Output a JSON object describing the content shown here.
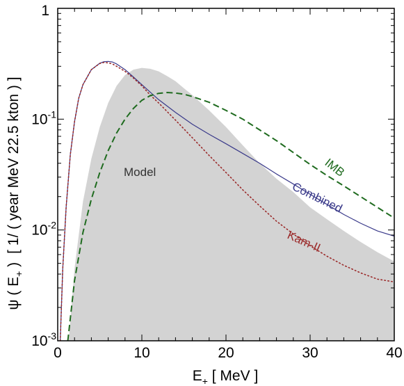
{
  "chart_data": {
    "type": "line",
    "title": "",
    "xlabel": {
      "main": "E",
      "sub": "+",
      "rest": " [ MeV ]"
    },
    "ylabel": {
      "psi": "ψ",
      "paren_open": " ( E",
      "sub": "+",
      "paren_close": " )",
      "units": "[ 1/ ( year MeV 22.5 kton ) ]"
    },
    "xlim": [
      0,
      40
    ],
    "ylim": [
      0.001,
      1
    ],
    "yscale": "log",
    "grid": false,
    "legend": "none",
    "x_ticks": [
      0,
      10,
      20,
      30,
      40
    ],
    "y_ticks": [
      {
        "value": 1,
        "base": "1",
        "exp": ""
      },
      {
        "value": 0.1,
        "base": "10",
        "exp": "-1"
      },
      {
        "value": 0.01,
        "base": "10",
        "exp": "-2"
      },
      {
        "value": 0.001,
        "base": "10",
        "exp": "-3"
      }
    ],
    "series": [
      {
        "name": "Model",
        "kind": "filled",
        "color": "#d3d3d3",
        "x": [
          1.3,
          2,
          3,
          4,
          5,
          6,
          7,
          8,
          9,
          10,
          11,
          12,
          13,
          14,
          15,
          16,
          18,
          20,
          22,
          24,
          26,
          28,
          30,
          32,
          34,
          36,
          38,
          40
        ],
        "y": [
          0.001,
          0.0045,
          0.018,
          0.044,
          0.085,
          0.14,
          0.2,
          0.25,
          0.28,
          0.29,
          0.285,
          0.27,
          0.245,
          0.22,
          0.19,
          0.165,
          0.12,
          0.085,
          0.058,
          0.04,
          0.029,
          0.022,
          0.016,
          0.0125,
          0.0098,
          0.0078,
          0.0063,
          0.0052
        ]
      },
      {
        "name": "Combined",
        "kind": "solid",
        "color": "#3a3a8a",
        "x": [
          0.3,
          0.6,
          1,
          1.5,
          2,
          2.5,
          3,
          4,
          5,
          5.5,
          6,
          6.5,
          7,
          8,
          9,
          10,
          11,
          12,
          14,
          16,
          18,
          20,
          22,
          24,
          26,
          28,
          30,
          32,
          34,
          36,
          38,
          40
        ],
        "y": [
          0.001,
          0.0045,
          0.016,
          0.048,
          0.095,
          0.155,
          0.205,
          0.28,
          0.32,
          0.33,
          0.332,
          0.328,
          0.315,
          0.28,
          0.24,
          0.205,
          0.175,
          0.15,
          0.115,
          0.09,
          0.073,
          0.06,
          0.049,
          0.04,
          0.032,
          0.026,
          0.021,
          0.017,
          0.0138,
          0.0115,
          0.0098,
          0.0088
        ]
      },
      {
        "name": "Kam-II",
        "kind": "dotted",
        "color": "#9b2a2a",
        "x": [
          0.3,
          0.6,
          1,
          1.5,
          2,
          2.5,
          3,
          4,
          5,
          5.5,
          6,
          6.5,
          7,
          8,
          9,
          10,
          11,
          12,
          14,
          16,
          18,
          20,
          22,
          24,
          26,
          28,
          30,
          32,
          34,
          36,
          38,
          40
        ],
        "y": [
          0.001,
          0.0045,
          0.016,
          0.048,
          0.095,
          0.155,
          0.205,
          0.28,
          0.318,
          0.325,
          0.322,
          0.315,
          0.3,
          0.27,
          0.235,
          0.2,
          0.165,
          0.14,
          0.098,
          0.068,
          0.047,
          0.033,
          0.023,
          0.0165,
          0.012,
          0.0092,
          0.0072,
          0.0058,
          0.0048,
          0.0041,
          0.0036,
          0.0034
        ]
      },
      {
        "name": "IMB",
        "kind": "dashed",
        "color": "#1f6b1f",
        "x": [
          1.2,
          1.5,
          2,
          3,
          4,
          5,
          6,
          7,
          8,
          9,
          10,
          11,
          12,
          13,
          14,
          15,
          16,
          18,
          20,
          22,
          24,
          26,
          28,
          30,
          32,
          34,
          36,
          38,
          40
        ],
        "y": [
          0.001,
          0.0016,
          0.0035,
          0.0095,
          0.019,
          0.033,
          0.052,
          0.075,
          0.1,
          0.125,
          0.148,
          0.163,
          0.171,
          0.174,
          0.172,
          0.168,
          0.16,
          0.142,
          0.12,
          0.1,
          0.08,
          0.064,
          0.05,
          0.039,
          0.031,
          0.025,
          0.02,
          0.016,
          0.0128
        ]
      }
    ],
    "annotations": [
      {
        "text": "Model",
        "color": "#333333"
      },
      {
        "text": "Combined",
        "color": "#3a3a8a"
      },
      {
        "text": "IMB",
        "color": "#1f6b1f"
      },
      {
        "text": "Kam-II",
        "color": "#9b2a2a"
      }
    ]
  }
}
